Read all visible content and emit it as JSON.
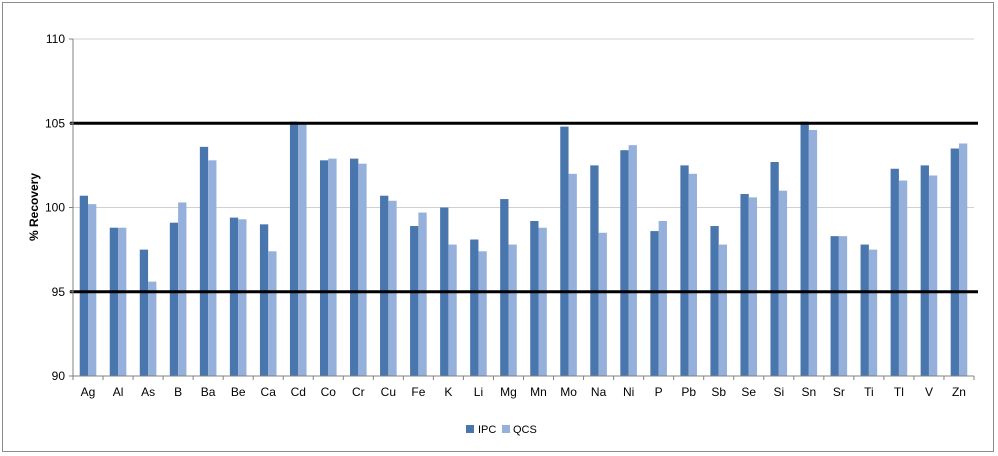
{
  "chart_data": {
    "type": "bar",
    "title": "",
    "xlabel": "",
    "ylabel": "% Recovery",
    "ylim": [
      90,
      110
    ],
    "yticks": [
      90,
      95,
      100,
      105,
      110
    ],
    "grid": true,
    "legend_position": "bottom",
    "colors": {
      "IPC": "#4a76ae",
      "QCS": "#95b0db"
    },
    "categories": [
      "Ag",
      "Al",
      "As",
      "B",
      "Ba",
      "Be",
      "Ca",
      "Cd",
      "Co",
      "Cr",
      "Cu",
      "Fe",
      "K",
      "Li",
      "Mg",
      "Mn",
      "Mo",
      "Na",
      "Ni",
      "P",
      "Pb",
      "Sb",
      "Se",
      "Si",
      "Sn",
      "Sr",
      "Ti",
      "Tl",
      "V",
      "Zn"
    ],
    "series": [
      {
        "name": "IPC",
        "values": [
          100.7,
          98.8,
          97.5,
          99.1,
          103.6,
          99.4,
          99.0,
          105.1,
          102.8,
          102.9,
          100.7,
          98.9,
          100.0,
          98.1,
          100.5,
          99.2,
          104.8,
          102.5,
          103.4,
          98.6,
          102.5,
          98.9,
          100.8,
          102.7,
          105.1,
          98.3,
          97.8,
          102.3,
          102.5,
          103.5
        ]
      },
      {
        "name": "QCS",
        "values": [
          100.2,
          98.8,
          95.6,
          100.3,
          102.8,
          99.3,
          97.4,
          105.0,
          102.9,
          102.6,
          100.4,
          99.7,
          97.8,
          97.4,
          97.8,
          98.8,
          102.0,
          98.5,
          103.7,
          99.2,
          102.0,
          97.8,
          100.6,
          101.0,
          104.6,
          98.3,
          97.5,
          101.6,
          101.9,
          103.8
        ]
      }
    ],
    "reference_lines": [
      95,
      105
    ]
  }
}
